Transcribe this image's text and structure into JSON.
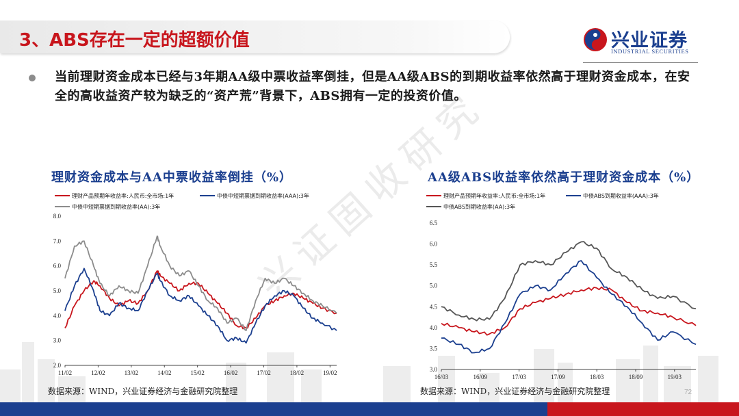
{
  "header": {
    "title": "3、ABS存在一定的超额价值",
    "logo_cn": "兴业证券",
    "logo_en": "INDUSTRIAL SECURITIES"
  },
  "body": {
    "bullet_text": "当前理财资金成本已经与3年期AA级中票收益率倒挂，但是AA级ABS的到期收益率依然高于理财资金成本，在安全的高收益资产较为缺乏的“资产荒”背景下，ABS拥有一定的投资价值。"
  },
  "watermark": "兴证固收研究",
  "colors": {
    "red": "#c8161d",
    "navy": "#1b3f8f",
    "gray": "#8c8c8c"
  },
  "chart_data": [
    {
      "type": "line",
      "title": "理财资金成本与AA中票收益率倒挂（%）",
      "source": "数据来源：WIND，兴业证券经济与金融研究院整理",
      "ylim": [
        2.0,
        8.0
      ],
      "y_ticks": [
        "8.0",
        "7.0",
        "6.0",
        "5.0",
        "4.0",
        "3.0",
        "2.0"
      ],
      "x_ticks": [
        "11/02",
        "12/02",
        "13/02",
        "14/02",
        "15/02",
        "16/02",
        "17/02",
        "18/02",
        "19/02"
      ],
      "x_start": 2011.0,
      "x_end": 2019.55,
      "legend": "top",
      "series": [
        {
          "name": "理财产品预期年收益率:人民币:全市场:1年",
          "color": "#c8161d",
          "x": [
            2011.0,
            2011.3,
            2011.6,
            2011.9,
            2012.1,
            2012.4,
            2012.7,
            2013.0,
            2013.3,
            2013.6,
            2013.9,
            2014.0,
            2014.3,
            2014.6,
            2014.9,
            2015.2,
            2015.5,
            2015.8,
            2016.1,
            2016.4,
            2016.7,
            2017.0,
            2017.3,
            2017.6,
            2017.9,
            2018.2,
            2018.5,
            2018.8,
            2019.1,
            2019.55
          ],
          "y": [
            3.5,
            4.4,
            5.0,
            5.4,
            5.2,
            4.7,
            4.4,
            4.6,
            4.5,
            5.0,
            5.8,
            5.6,
            5.3,
            5.0,
            5.3,
            5.3,
            4.9,
            4.5,
            4.1,
            3.6,
            3.5,
            3.9,
            4.4,
            4.6,
            4.8,
            4.9,
            4.7,
            4.5,
            4.3,
            4.1
          ]
        },
        {
          "name": "中债中短期票据到期收益率(AAA):3年",
          "color": "#1b3f8f",
          "x": [
            2011.0,
            2011.3,
            2011.6,
            2011.9,
            2012.1,
            2012.4,
            2012.7,
            2013.0,
            2013.3,
            2013.6,
            2013.9,
            2014.0,
            2014.3,
            2014.6,
            2014.9,
            2015.2,
            2015.5,
            2015.8,
            2016.1,
            2016.4,
            2016.7,
            2017.0,
            2017.3,
            2017.6,
            2017.9,
            2018.2,
            2018.5,
            2018.8,
            2019.1,
            2019.55
          ],
          "y": [
            4.2,
            5.2,
            5.9,
            5.0,
            4.2,
            4.0,
            4.5,
            4.3,
            4.2,
            5.0,
            5.7,
            5.4,
            4.8,
            4.6,
            4.8,
            4.4,
            4.0,
            3.6,
            3.0,
            3.1,
            2.9,
            3.7,
            4.4,
            4.8,
            5.0,
            4.8,
            4.3,
            3.9,
            3.7,
            3.4
          ]
        },
        {
          "name": "中债中短期票据到期收益率(AA):3年",
          "color": "#8c8c8c",
          "x": [
            2011.0,
            2011.3,
            2011.6,
            2011.9,
            2012.1,
            2012.4,
            2012.7,
            2013.0,
            2013.3,
            2013.6,
            2013.9,
            2014.0,
            2014.3,
            2014.6,
            2014.9,
            2015.2,
            2015.5,
            2015.8,
            2016.1,
            2016.4,
            2016.7,
            2017.0,
            2017.3,
            2017.6,
            2017.9,
            2018.2,
            2018.5,
            2018.8,
            2019.1,
            2019.55
          ],
          "y": [
            5.5,
            6.8,
            7.0,
            6.0,
            5.3,
            4.8,
            5.2,
            5.0,
            4.9,
            6.0,
            7.2,
            6.8,
            6.0,
            5.6,
            5.8,
            5.2,
            4.6,
            4.3,
            3.7,
            3.9,
            3.4,
            4.6,
            5.5,
            5.3,
            5.5,
            5.2,
            4.9,
            4.6,
            4.4,
            4.1
          ]
        }
      ]
    },
    {
      "type": "line",
      "title": "AA级ABS收益率依然高于理财资金成本（%）",
      "source": "数据来源：WIND，兴业证券经济与金融研究院整理",
      "ylim": [
        3.0,
        6.5
      ],
      "y_ticks": [
        "6.5",
        "6.0",
        "5.5",
        "5.0",
        "4.5",
        "4.0",
        "3.5",
        "3.0"
      ],
      "x_ticks": [
        "16/03",
        "16/09",
        "17/03",
        "17/09",
        "18/03",
        "18/09",
        "19/03"
      ],
      "x_start": 2016.17,
      "x_end": 2019.5,
      "legend": "top",
      "series": [
        {
          "name": "理财产品预期年收益率:人民币:全市场:1年",
          "color": "#c8161d",
          "x": [
            2016.17,
            2016.4,
            2016.6,
            2016.8,
            2017.0,
            2017.2,
            2017.4,
            2017.6,
            2017.8,
            2018.0,
            2018.2,
            2018.4,
            2018.6,
            2018.8,
            2019.0,
            2019.2,
            2019.5
          ],
          "y": [
            4.1,
            4.0,
            3.9,
            3.85,
            4.0,
            4.45,
            4.6,
            4.7,
            4.8,
            4.9,
            4.95,
            4.9,
            4.6,
            4.4,
            4.35,
            4.25,
            4.05
          ]
        },
        {
          "name": "中债ABS到期收益率(AAA):3年",
          "color": "#1b3f8f",
          "x": [
            2016.17,
            2016.4,
            2016.6,
            2016.8,
            2017.0,
            2017.2,
            2017.4,
            2017.6,
            2017.8,
            2018.0,
            2018.2,
            2018.4,
            2018.6,
            2018.8,
            2019.0,
            2019.2,
            2019.5
          ],
          "y": [
            3.75,
            3.6,
            3.4,
            3.5,
            4.1,
            4.8,
            5.0,
            4.9,
            5.3,
            5.6,
            5.2,
            4.8,
            4.5,
            4.1,
            3.7,
            3.9,
            3.6
          ]
        },
        {
          "name": "中债ABS到期收益率(AA):3年",
          "color": "#555555",
          "x": [
            2016.17,
            2016.4,
            2016.6,
            2016.8,
            2017.0,
            2017.2,
            2017.4,
            2017.6,
            2017.8,
            2018.0,
            2018.2,
            2018.4,
            2018.6,
            2018.8,
            2019.0,
            2019.2,
            2019.5
          ],
          "y": [
            4.5,
            4.3,
            4.2,
            4.2,
            4.7,
            5.5,
            5.6,
            5.5,
            5.8,
            6.05,
            5.9,
            5.4,
            5.2,
            4.9,
            4.7,
            4.75,
            4.45
          ]
        }
      ]
    }
  ],
  "page_number": "72"
}
